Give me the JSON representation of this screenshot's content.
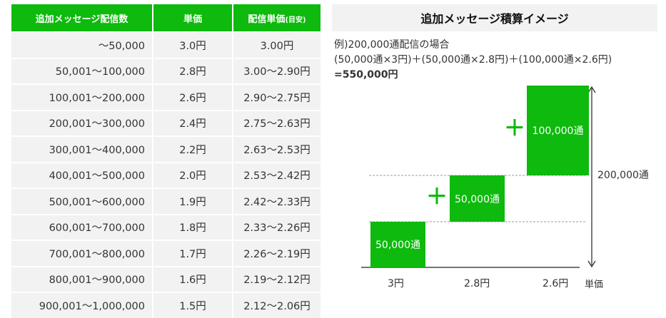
{
  "table": {
    "headers": [
      "追加メッセージ配信数",
      "単価",
      "配信単価(目安)"
    ],
    "header_sub": "(目安)",
    "rows": [
      {
        "count": "～50,000",
        "unit": "3.0円",
        "range": "3.00円"
      },
      {
        "count": "50,001～100,000",
        "unit": "2.8円",
        "range": "3.00～2.90円"
      },
      {
        "count": "100,001～200,000",
        "unit": "2.6円",
        "range": "2.90～2.75円"
      },
      {
        "count": "200,001～300,000",
        "unit": "2.4円",
        "range": "2.75～2.63円"
      },
      {
        "count": "300,001～400,000",
        "unit": "2.2円",
        "range": "2.63～2.53円"
      },
      {
        "count": "400,001～500,000",
        "unit": "2.0円",
        "range": "2.53～2.42円"
      },
      {
        "count": "500,001～600,000",
        "unit": "1.9円",
        "range": "2.42～2.33円"
      },
      {
        "count": "600,001～700,000",
        "unit": "1.8円",
        "range": "2.33～2.26円"
      },
      {
        "count": "700,001～800,000",
        "unit": "1.7円",
        "range": "2.26～2.19円"
      },
      {
        "count": "800,001～900,000",
        "unit": "1.6円",
        "range": "2.19～2.12円"
      },
      {
        "count": "900,001～1,000,000",
        "unit": "1.5円",
        "range": "2.12～2.06円"
      }
    ]
  },
  "diagram": {
    "title": "追加メッセージ積算イメージ",
    "example_line1": "例)200,000通配信の場合",
    "example_line2": "(50,000通×3円)＋(50,000通×2.8円)＋(100,000通×2.6円)",
    "example_total": "=550,000円",
    "steps": [
      {
        "label": "50,000通",
        "price": "3円"
      },
      {
        "label": "50,000通",
        "price": "2.8円"
      },
      {
        "label": "100,000通",
        "price": "2.6円"
      }
    ],
    "plus": "＋",
    "total_label": "200,000通",
    "axis_unit": "単価",
    "colors": {
      "accent": "#0dba0d",
      "cell": "#f2f2f2"
    }
  }
}
